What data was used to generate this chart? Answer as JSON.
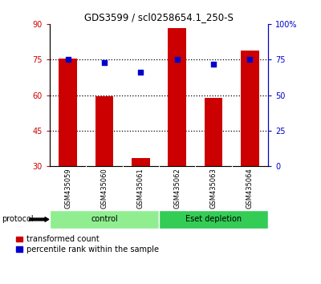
{
  "title": "GDS3599 / scl0258654.1_250-S",
  "samples": [
    "GSM435059",
    "GSM435060",
    "GSM435061",
    "GSM435062",
    "GSM435063",
    "GSM435064"
  ],
  "bar_values": [
    75.5,
    59.5,
    33.5,
    88.5,
    59.0,
    79.0
  ],
  "bar_bottom": [
    30,
    30,
    30,
    30,
    30,
    30
  ],
  "percentile_values": [
    75,
    73,
    66,
    75,
    72,
    75
  ],
  "left_ylim": [
    30,
    90
  ],
  "left_yticks": [
    30,
    45,
    60,
    75,
    90
  ],
  "right_ylim": [
    0,
    100
  ],
  "right_yticks": [
    0,
    25,
    50,
    75,
    100
  ],
  "right_yticklabels": [
    "0",
    "25",
    "50",
    "75",
    "100%"
  ],
  "hlines": [
    75,
    60,
    45
  ],
  "bar_color": "#cc0000",
  "dot_color": "#0000cc",
  "left_tick_color": "#cc0000",
  "right_tick_color": "#0000cc",
  "protocol_groups": [
    {
      "label": "control",
      "samples": [
        0,
        1,
        2
      ],
      "color": "#90ee90"
    },
    {
      "label": "Eset depletion",
      "samples": [
        3,
        4,
        5
      ],
      "color": "#33cc55"
    }
  ],
  "legend_bar_label": "transformed count",
  "legend_dot_label": "percentile rank within the sample",
  "protocol_label": "protocol",
  "bg_color": "#ffffff",
  "plot_bg_color": "#ffffff",
  "tick_label_area_color": "#c8c8c8",
  "bar_width": 0.5
}
